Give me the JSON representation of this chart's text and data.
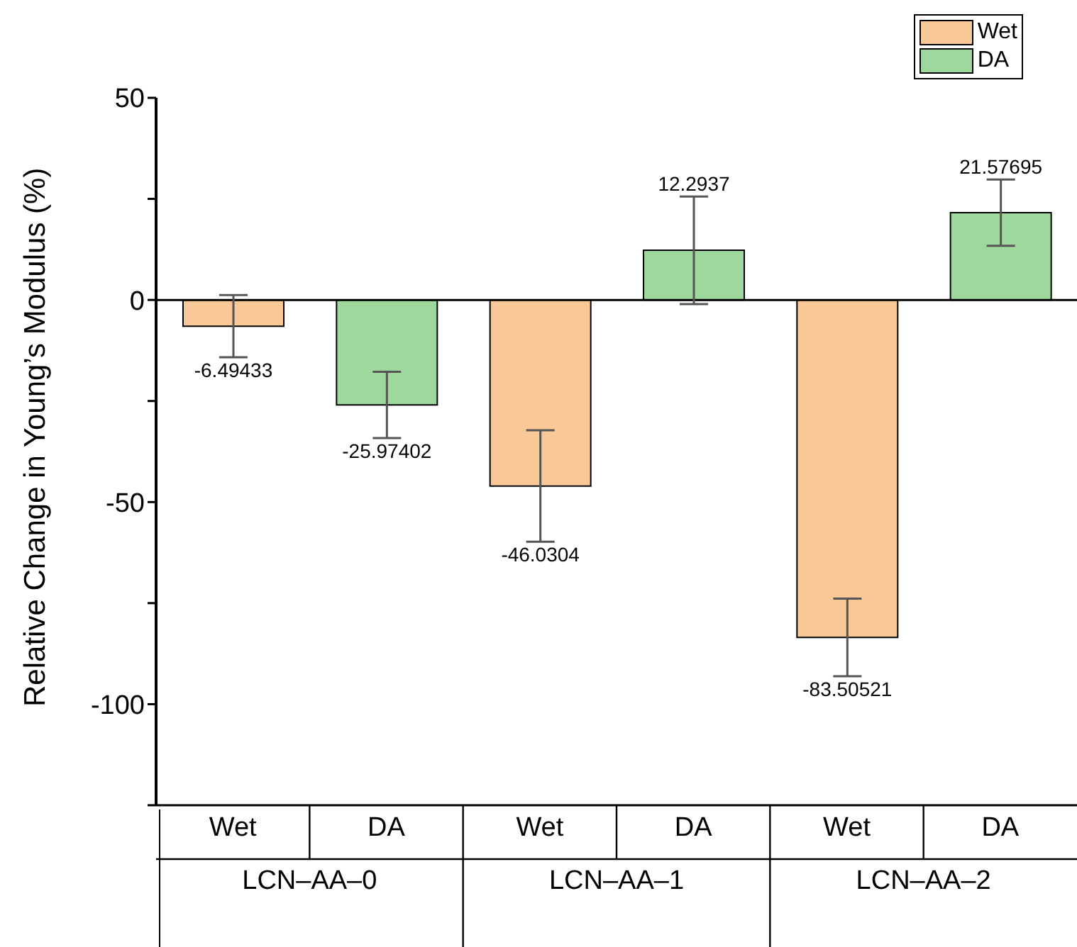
{
  "chart_data": {
    "type": "bar",
    "ylabel": "Relative Change in Young’s Modulus (%)",
    "categories": [
      "Wet",
      "DA",
      "Wet",
      "DA",
      "Wet",
      "DA"
    ],
    "series": [
      {
        "name": "Wet",
        "color": "#f9c897",
        "values": [
          -6.49433,
          null,
          -46.0304,
          null,
          -83.50521,
          null
        ],
        "errors": [
          7.7,
          null,
          13.8,
          null,
          9.6,
          null
        ]
      },
      {
        "name": "DA",
        "color": "#9fd89c",
        "values": [
          null,
          -25.97402,
          null,
          12.2937,
          null,
          21.57695
        ],
        "errors": [
          null,
          8.2,
          null,
          13.3,
          null,
          8.2
        ]
      }
    ],
    "ylim": [
      -125,
      50
    ],
    "yticks": [
      50,
      {
        "value": 25,
        "label": null
      },
      0,
      {
        "value": -25,
        "label": null
      },
      -50,
      {
        "value": -75,
        "label": null
      },
      -100,
      {
        "value": -125,
        "label": null
      }
    ],
    "annotations": [
      "LCN–AA–0",
      "LCN–AA–1",
      "LCN–AA–2"
    ],
    "data_labels": true,
    "legend": "top right"
  }
}
